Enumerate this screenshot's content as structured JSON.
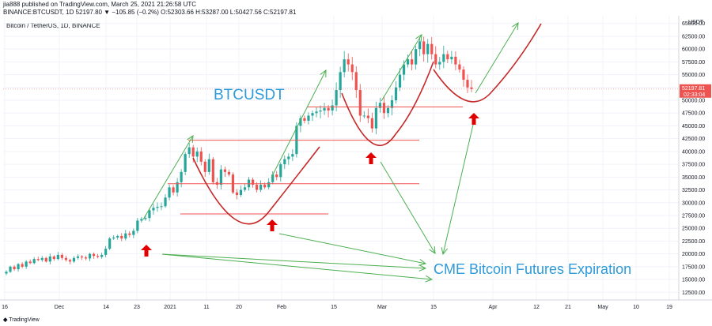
{
  "header": {
    "line1": "jia888 published on TradingView.com, March 25, 2021 21:26:58 UTC",
    "symbol": "BINANCE:BTCUSDT, 1D",
    "ohlc": "52197.80 ▼ −105.85 (−0.2%) O:52303.66 H:53287.00 L:50427.56 C:52197.81",
    "subtitle": "Bitcoin / TetherUS, 1D, BINANCE"
  },
  "footer": {
    "brand": "TradingView"
  },
  "chart_data": {
    "type": "candlestick",
    "currency_label": "USDT",
    "y_ticks": [
      12500,
      15000,
      17500,
      20000,
      22500,
      25000,
      27500,
      30000,
      32500,
      35000,
      37500,
      40000,
      42500,
      45000,
      47500,
      50000,
      52500,
      55000,
      57500,
      60000,
      62500,
      65000
    ],
    "ylim": [
      11000,
      66500
    ],
    "x_ticks": [
      "16",
      "Dec",
      "14",
      "23",
      "2021",
      "11",
      "20",
      "Feb",
      "15",
      "Mar",
      "15",
      "Apr",
      "12",
      "21",
      "May",
      "10",
      "19"
    ],
    "last_price": "52197.81",
    "countdown": "02:33:04",
    "series_price_approx": [
      16500,
      17500,
      17000,
      18000,
      17500,
      18500,
      18200,
      19000,
      18800,
      19200,
      18500,
      19500,
      19000,
      19800,
      19200,
      18800,
      18500,
      19200,
      19500,
      19300,
      19100,
      20000,
      19600,
      19400,
      19800,
      21000,
      23000,
      23200,
      23500,
      23000,
      24000,
      23700,
      24500,
      26500,
      26800,
      27000,
      28500,
      29000,
      29200,
      29300,
      31000,
      33000,
      32000,
      34000,
      36000,
      39500,
      40800,
      39000,
      40000,
      38000,
      36000,
      38500,
      34000,
      33500,
      36500,
      36000,
      35500,
      32000,
      31500,
      32500,
      33000,
      34500,
      33500,
      32500,
      33500,
      33000,
      34000,
      35500,
      35000,
      37500,
      38500,
      39000,
      39500,
      45000,
      46500,
      46000,
      47000,
      47500,
      47800,
      48000,
      48500,
      48000,
      49000,
      52000,
      55500,
      58000,
      57000,
      55500,
      52000,
      47000,
      47000,
      46500,
      44500,
      48500,
      49500,
      47500,
      48500,
      50000,
      52500,
      55000,
      57000,
      58000,
      57000,
      60000,
      61500,
      59000,
      61000,
      59000,
      57000,
      57500,
      59000,
      58000,
      58500,
      57000,
      56000,
      54000,
      52500,
      52197
    ]
  },
  "annotations": {
    "title": "BTCUSDT",
    "event": "CME Bitcoin Futures Expiration"
  },
  "colors": {
    "up": "#26a69a",
    "down": "#ef5350",
    "trend_arrow": "#4caf50",
    "curve": "#c62828",
    "marker": "#e00000",
    "label_blue": "#2e9ad8",
    "hline": "#ef5350"
  }
}
